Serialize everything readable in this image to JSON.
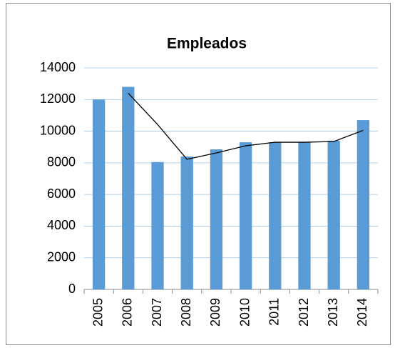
{
  "chart_data": {
    "type": "bar",
    "title": "Empleados",
    "categories": [
      "2005",
      "2006",
      "2007",
      "2008",
      "2009",
      "2010",
      "2011",
      "2012",
      "2013",
      "2014"
    ],
    "values": [
      12000,
      12800,
      8050,
      8400,
      8850,
      9300,
      9300,
      9300,
      9400,
      10700
    ],
    "color": "#5b9bd5",
    "ylim": [
      0,
      14000
    ],
    "yticks": [
      0,
      2000,
      4000,
      6000,
      8000,
      10000,
      12000,
      14000
    ],
    "grid": true,
    "trendline": {
      "type": "moving_average",
      "period": 2,
      "color": "#000000"
    }
  }
}
